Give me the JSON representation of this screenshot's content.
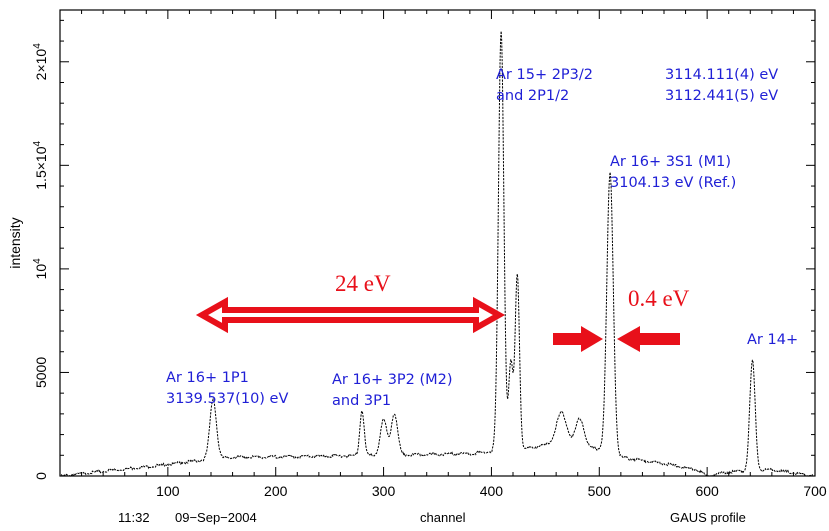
{
  "chart_data": {
    "type": "line",
    "title": "",
    "xlabel": "channel",
    "ylabel": "intensity",
    "xlim": [
      0,
      700
    ],
    "ylim": [
      0,
      22500
    ],
    "x_ticks": [
      100,
      200,
      300,
      400,
      500,
      600,
      700
    ],
    "x_tick_labels": [
      "100",
      "200",
      "300",
      "400",
      "500",
      "600",
      "700"
    ],
    "y_ticks": [
      0,
      5000,
      10000,
      15000,
      20000
    ],
    "y_tick_labels": [
      {
        "id": "y0",
        "base": "0",
        "sup": ""
      },
      {
        "id": "y5000",
        "base": "5000",
        "sup": ""
      },
      {
        "id": "y10000",
        "base": "10",
        "sup": "4"
      },
      {
        "id": "y15000",
        "base": "1.5×10",
        "sup": "4"
      },
      {
        "id": "y20000",
        "base": "2×10",
        "sup": "4"
      }
    ],
    "series": [
      {
        "color": "#000000",
        "baseline": [
          [
            0,
            0
          ],
          [
            50,
            280
          ],
          [
            100,
            560
          ],
          [
            140,
            820
          ],
          [
            160,
            900
          ],
          [
            250,
            960
          ],
          [
            300,
            1000
          ],
          [
            380,
            1080
          ],
          [
            405,
            1200
          ],
          [
            430,
            1300
          ],
          [
            450,
            1500
          ],
          [
            500,
            1300
          ],
          [
            520,
            900
          ],
          [
            560,
            600
          ],
          [
            590,
            300
          ],
          [
            600,
            0
          ],
          [
            620,
            200
          ],
          [
            660,
            300
          ],
          [
            700,
            0
          ]
        ],
        "peaks": [
          {
            "x": 142,
            "height": 2900,
            "width": 3
          },
          {
            "x": 280,
            "height": 2200,
            "width": 2
          },
          {
            "x": 300,
            "height": 1700,
            "width": 3
          },
          {
            "x": 310,
            "height": 2000,
            "width": 3
          },
          {
            "x": 409,
            "height": 20300,
            "width": 2.5
          },
          {
            "x": 418,
            "height": 4200,
            "width": 2
          },
          {
            "x": 424,
            "height": 8500,
            "width": 2
          },
          {
            "x": 465,
            "height": 1600,
            "width": 5
          },
          {
            "x": 482,
            "height": 1400,
            "width": 4
          },
          {
            "x": 510,
            "height": 13500,
            "width": 3
          },
          {
            "x": 642,
            "height": 5300,
            "width": 2.5
          }
        ]
      }
    ],
    "annotations_blue": [
      {
        "id": "a1",
        "lines": [
          "Ar 16+ 1P1",
          "3139.537(10) eV"
        ]
      },
      {
        "id": "a2",
        "lines": [
          "Ar 16+ 3P2 (M2)",
          "and 3P1"
        ]
      },
      {
        "id": "a3",
        "lines": [
          "Ar 15+ 2P3/2",
          "and 2P1/2"
        ]
      },
      {
        "id": "a4",
        "lines": [
          "3114.111(4) eV",
          "3112.441(5) eV"
        ]
      },
      {
        "id": "a5",
        "lines": [
          "Ar 16+ 3S1 (M1)",
          "3104.13 eV (Ref.)"
        ]
      },
      {
        "id": "a6",
        "lines": [
          "Ar 14+"
        ]
      }
    ],
    "annotations_red": [
      {
        "id": "r1",
        "text": "24 eV"
      },
      {
        "id": "r2",
        "text": "0.4 eV"
      }
    ],
    "accent_color": "#e8101a",
    "label_color": "#1f1fd6"
  },
  "footer": {
    "time": "11:32",
    "date": "09−Sep−2004",
    "xlabel": "channel",
    "profile": "GAUS profile"
  }
}
